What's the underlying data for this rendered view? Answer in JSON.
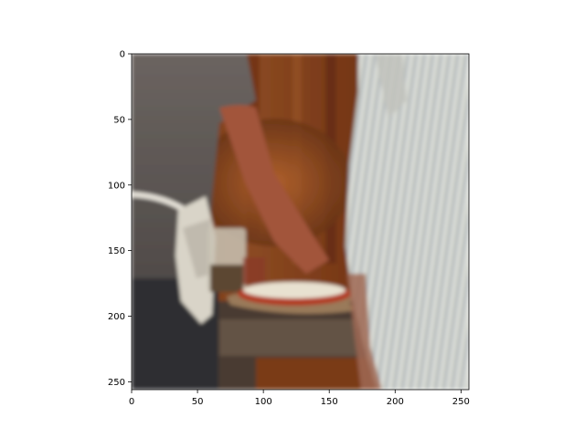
{
  "chart_data": {
    "type": "heatmap",
    "title": "",
    "xlabel": "",
    "ylabel": "",
    "xlim": [
      0,
      256
    ],
    "ylim": [
      256,
      0
    ],
    "xticks": [
      0,
      50,
      100,
      150,
      200,
      250
    ],
    "yticks": [
      0,
      50,
      100,
      150,
      200,
      250
    ],
    "grid": false,
    "image_description": "Blurred photo: kitchen scene with a person in a grey t-shirt and apron on the left, a person in a blue and white striped shirt on the right, and a pizza on a peel in the center against a wooden background."
  },
  "colors": {
    "wood": "#7a3a18",
    "grey_shirt": "#5f5a57",
    "striped_shirt": "#c9cbc4",
    "pizza_cheese": "#e8e1d0",
    "pizza_sauce": "#b23a23"
  }
}
